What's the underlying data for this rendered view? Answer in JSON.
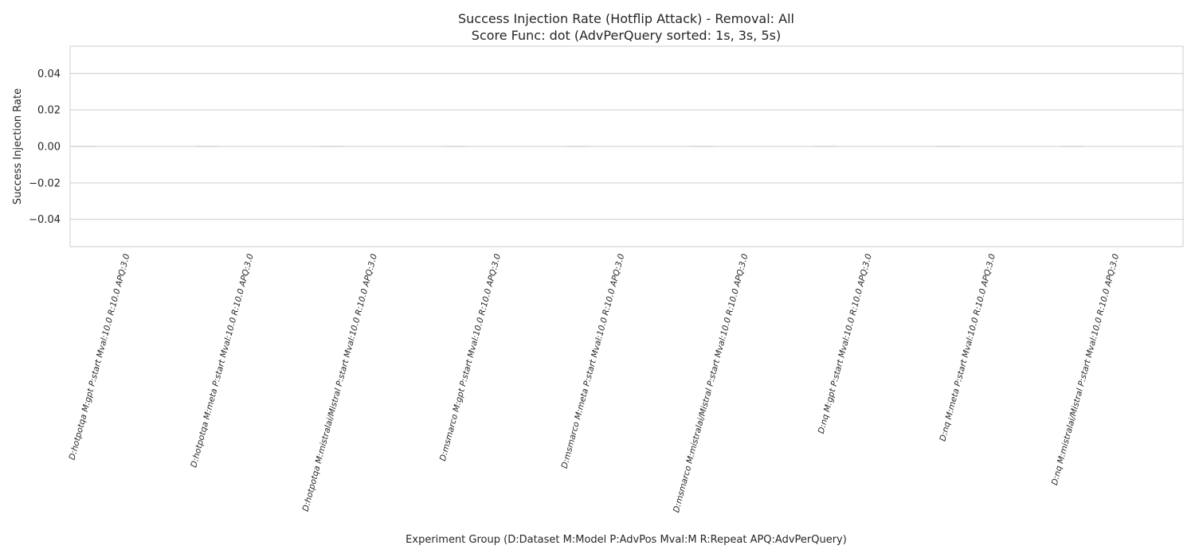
{
  "chart_data": {
    "type": "bar",
    "title": [
      "Success Injection Rate (Hotflip Attack) - Removal: All",
      "Score Func: dot (AdvPerQuery sorted: 1s, 3s, 5s)"
    ],
    "xlabel": "Experiment Group (D:Dataset M:Model P:AdvPos Mval:M R:Repeat APQ:AdvPerQuery)",
    "ylabel": "Success Injection Rate",
    "ylim": [
      -0.055,
      0.055
    ],
    "yticks": [
      0.04,
      0.02,
      0.0,
      -0.02,
      -0.04
    ],
    "ytick_labels": [
      "0.04",
      "0.02",
      "0.00",
      "−0.02",
      "−0.04"
    ],
    "grid": true,
    "categories": [
      "D:hotpotqa M:gpt P:start Mval:10.0 R:10.0 APQ:3.0",
      "D:hotpotqa M:meta P:start Mval:10.0 R:10.0 APQ:3.0",
      "D:hotpotqa M:mistralai/Mistral P:start Mval:10.0 R:10.0 APQ:3.0",
      "D:msmarco M:gpt P:start Mval:10.0 R:10.0 APQ:3.0",
      "D:msmarco M:meta P:start Mval:10.0 R:10.0 APQ:3.0",
      "D:msmarco M:mistralai/Mistral P:start Mval:10.0 R:10.0 APQ:3.0",
      "D:nq M:gpt P:start Mval:10.0 R:10.0 APQ:3.0",
      "D:nq M:meta P:start Mval:10.0 R:10.0 APQ:3.0",
      "D:nq M:mistralai/Mistral P:start Mval:10.0 R:10.0 APQ:3.0"
    ],
    "values": [
      0,
      0,
      0,
      0,
      0,
      0,
      0,
      0,
      0
    ],
    "colors": {
      "frame": "#cccccc",
      "grid": "#cccccc",
      "bar_edge": "#cccccc",
      "text": "#262626"
    }
  }
}
